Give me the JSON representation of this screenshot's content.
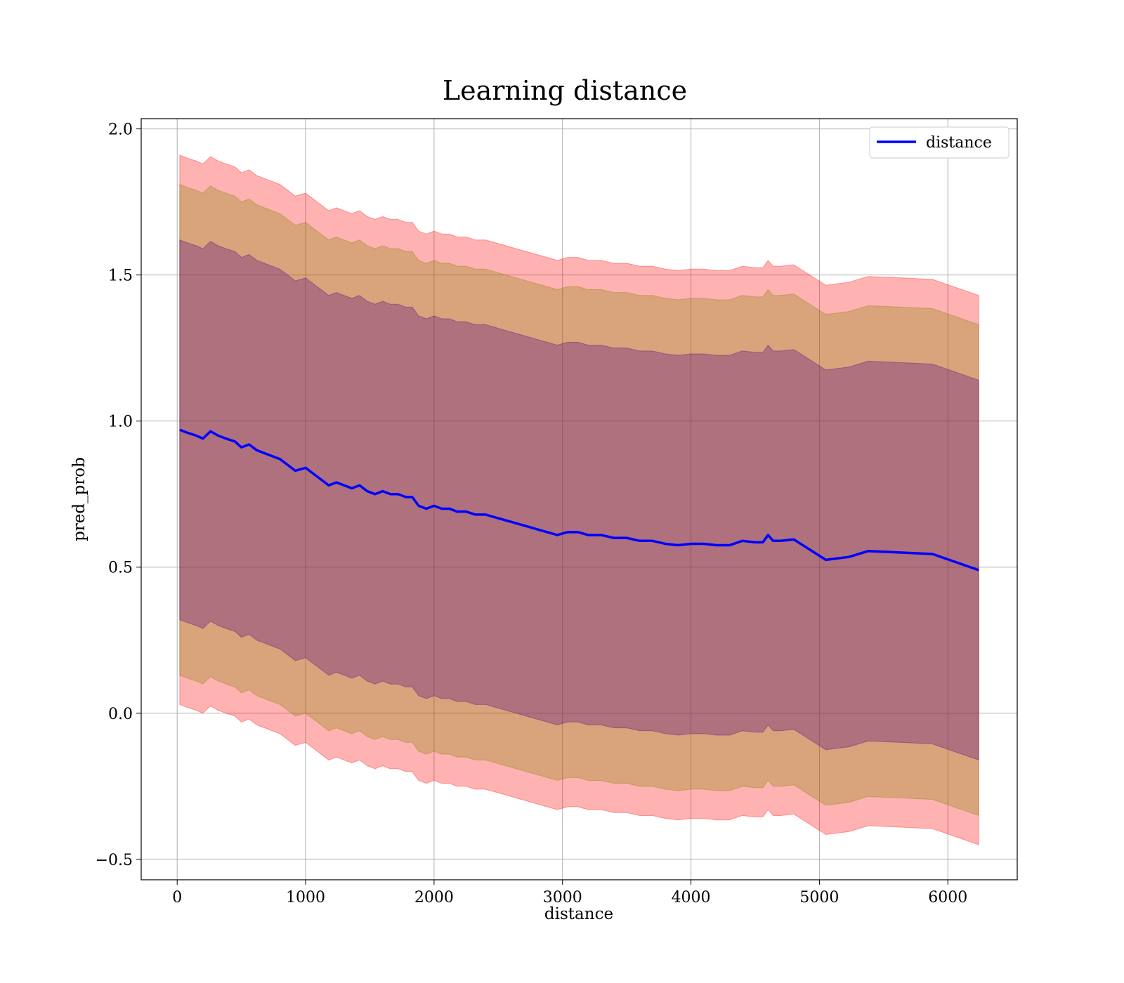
{
  "chart_data": {
    "type": "line",
    "title": "Learning distance",
    "xlabel": "distance",
    "ylabel": "pred_prob",
    "xlim": [
      -280,
      6540
    ],
    "ylim": [
      -0.57,
      2.035
    ],
    "xticks": [
      0,
      1000,
      2000,
      3000,
      4000,
      5000,
      6000
    ],
    "yticks": [
      -0.5,
      0.0,
      0.5,
      1.0,
      1.5,
      2.0
    ],
    "ytick_labels": [
      "−0.5",
      "0.0",
      "0.5",
      "1.0",
      "1.5",
      "2.0"
    ],
    "grid": true,
    "legend_position": "top-right",
    "series": [
      {
        "name": "distance",
        "color": "#0000ff",
        "x": [
          20,
          80,
          150,
          200,
          260,
          320,
          380,
          450,
          500,
          560,
          620,
          680,
          740,
          800,
          860,
          920,
          1000,
          1060,
          1120,
          1180,
          1240,
          1300,
          1360,
          1420,
          1480,
          1540,
          1600,
          1660,
          1720,
          1780,
          1830,
          1880,
          1940,
          2000,
          2060,
          2120,
          2180,
          2250,
          2320,
          2400,
          2480,
          2560,
          2640,
          2720,
          2800,
          2880,
          2960,
          3040,
          3120,
          3200,
          3300,
          3400,
          3500,
          3600,
          3700,
          3800,
          3900,
          4000,
          4100,
          4200,
          4300,
          4400,
          4500,
          4560,
          4600,
          4640,
          4700,
          4800,
          5050,
          5230,
          5380,
          5640,
          5880,
          6240
        ],
        "y": [
          0.97,
          0.96,
          0.95,
          0.94,
          0.965,
          0.95,
          0.94,
          0.93,
          0.91,
          0.92,
          0.9,
          0.89,
          0.88,
          0.87,
          0.85,
          0.83,
          0.84,
          0.82,
          0.8,
          0.78,
          0.79,
          0.78,
          0.77,
          0.78,
          0.76,
          0.75,
          0.76,
          0.75,
          0.75,
          0.74,
          0.74,
          0.71,
          0.7,
          0.71,
          0.7,
          0.7,
          0.69,
          0.69,
          0.68,
          0.68,
          0.67,
          0.66,
          0.65,
          0.64,
          0.63,
          0.62,
          0.61,
          0.62,
          0.62,
          0.61,
          0.61,
          0.6,
          0.6,
          0.59,
          0.59,
          0.58,
          0.575,
          0.58,
          0.58,
          0.575,
          0.575,
          0.59,
          0.585,
          0.585,
          0.61,
          0.59,
          0.59,
          0.595,
          0.525,
          0.535,
          0.555,
          0.55,
          0.545,
          0.49
        ]
      }
    ],
    "bands": [
      {
        "color": "#ff0000",
        "opacity": 0.3,
        "offset": 0.94
      },
      {
        "color": "#808000",
        "opacity": 0.3,
        "offset": 0.84
      },
      {
        "color": "#4b0082",
        "opacity": 0.3,
        "offset": 0.65
      }
    ]
  }
}
